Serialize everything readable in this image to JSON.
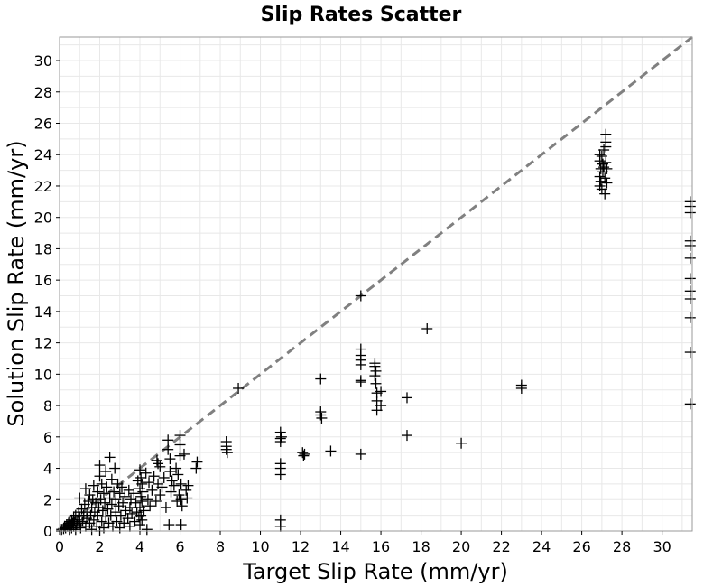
{
  "chart_data": {
    "type": "scatter",
    "title": "Slip Rates Scatter",
    "xlabel": "Target Slip Rate (mm/yr)",
    "ylabel": "Solution Slip Rate (mm/yr)",
    "xlim": [
      0,
      31.5
    ],
    "ylim": [
      0,
      31.5
    ],
    "xticks": [
      "0",
      "2",
      "4",
      "6",
      "8",
      "10",
      "12",
      "14",
      "16",
      "18",
      "20",
      "22",
      "24",
      "26",
      "28",
      "30"
    ],
    "yticks": [
      "0",
      "2",
      "4",
      "6",
      "8",
      "10",
      "12",
      "14",
      "16",
      "18",
      "20",
      "22",
      "24",
      "26",
      "28",
      "30"
    ],
    "grid": true,
    "marker": "plus",
    "marker_color": "#000000",
    "reference_line": {
      "from": [
        0,
        0
      ],
      "to": [
        31.5,
        31.5
      ],
      "style": "dashed",
      "color": "#808080"
    },
    "points": [
      [
        0.1,
        0.1
      ],
      [
        0.2,
        0.15
      ],
      [
        0.25,
        0.3
      ],
      [
        0.3,
        0.2
      ],
      [
        0.35,
        0.4
      ],
      [
        0.4,
        0.3
      ],
      [
        0.45,
        0.5
      ],
      [
        0.5,
        0.1
      ],
      [
        0.5,
        0.6
      ],
      [
        0.55,
        0.35
      ],
      [
        0.6,
        0.7
      ],
      [
        0.6,
        0.2
      ],
      [
        0.65,
        0.5
      ],
      [
        0.7,
        0.9
      ],
      [
        0.7,
        0.3
      ],
      [
        0.75,
        0.6
      ],
      [
        0.8,
        0.1
      ],
      [
        0.8,
        1.0
      ],
      [
        0.85,
        0.4
      ],
      [
        0.9,
        0.7
      ],
      [
        0.95,
        1.2
      ],
      [
        1.0,
        0.5
      ],
      [
        1.0,
        0.9
      ],
      [
        1.0,
        2.1
      ],
      [
        1.05,
        0.2
      ],
      [
        1.1,
        1.4
      ],
      [
        1.15,
        0.6
      ],
      [
        1.2,
        1.0
      ],
      [
        1.25,
        1.7
      ],
      [
        1.3,
        0.3
      ],
      [
        1.3,
        2.7
      ],
      [
        1.35,
        0.8
      ],
      [
        1.4,
        1.2
      ],
      [
        1.45,
        1.9
      ],
      [
        1.5,
        0.5
      ],
      [
        1.5,
        2.3
      ],
      [
        1.55,
        1.0
      ],
      [
        1.6,
        1.5
      ],
      [
        1.6,
        0.1
      ],
      [
        1.65,
        2.0
      ],
      [
        1.7,
        2.9
      ],
      [
        1.7,
        0.7
      ],
      [
        1.75,
        1.2
      ],
      [
        1.8,
        1.8
      ],
      [
        1.85,
        0.3
      ],
      [
        1.9,
        2.5
      ],
      [
        1.9,
        1.0
      ],
      [
        1.95,
        1.5
      ],
      [
        2.0,
        0.0
      ],
      [
        2.0,
        3.5
      ],
      [
        2.0,
        4.2
      ],
      [
        2.05,
        2.0
      ],
      [
        2.1,
        0.6
      ],
      [
        2.1,
        3.0
      ],
      [
        2.15,
        1.3
      ],
      [
        2.2,
        2.4
      ],
      [
        2.2,
        0.2
      ],
      [
        2.25,
        1.8
      ],
      [
        2.3,
        3.8
      ],
      [
        2.3,
        0.9
      ],
      [
        2.35,
        2.8
      ],
      [
        2.4,
        1.4
      ],
      [
        2.45,
        0.5
      ],
      [
        2.5,
        2.1
      ],
      [
        2.5,
        4.7
      ],
      [
        2.55,
        1.0
      ],
      [
        2.6,
        3.3
      ],
      [
        2.6,
        1.7
      ],
      [
        2.65,
        0.3
      ],
      [
        2.7,
        2.5
      ],
      [
        2.75,
        4.0
      ],
      [
        2.8,
        1.2
      ],
      [
        2.8,
        2.0
      ],
      [
        2.85,
        0.6
      ],
      [
        2.9,
        3.0
      ],
      [
        2.95,
        1.6
      ],
      [
        3.0,
        2.4
      ],
      [
        3.0,
        0.2
      ],
      [
        3.05,
        1.0
      ],
      [
        3.1,
        2.8
      ],
      [
        3.15,
        1.8
      ],
      [
        3.2,
        0.5
      ],
      [
        3.25,
        2.2
      ],
      [
        3.3,
        1.3
      ],
      [
        3.4,
        0.8
      ],
      [
        3.45,
        2.6
      ],
      [
        3.5,
        1.5
      ],
      [
        3.5,
        0.3
      ],
      [
        3.55,
        2.0
      ],
      [
        3.6,
        1.1
      ],
      [
        3.7,
        2.4
      ],
      [
        3.75,
        0.6
      ],
      [
        3.8,
        1.8
      ],
      [
        3.85,
        1.2
      ],
      [
        3.9,
        3.2
      ],
      [
        3.95,
        0.9
      ],
      [
        4.0,
        3.9
      ],
      [
        4.0,
        2.7
      ],
      [
        4.0,
        1.5
      ],
      [
        4.0,
        0.4
      ],
      [
        4.05,
        3.4
      ],
      [
        4.05,
        2.2
      ],
      [
        4.05,
        1.0
      ],
      [
        4.1,
        3.0
      ],
      [
        4.1,
        1.9
      ],
      [
        4.1,
        0.7
      ],
      [
        4.15,
        2.5
      ],
      [
        4.2,
        1.3
      ],
      [
        4.3,
        3.7
      ],
      [
        4.35,
        0.1
      ],
      [
        4.4,
        2.0
      ],
      [
        4.45,
        3.1
      ],
      [
        4.5,
        1.6
      ],
      [
        4.6,
        2.6
      ],
      [
        4.7,
        3.5
      ],
      [
        4.8,
        1.9
      ],
      [
        4.85,
        4.5
      ],
      [
        4.9,
        4.3
      ],
      [
        4.9,
        3.0
      ],
      [
        5.0,
        4.1
      ],
      [
        5.0,
        2.3
      ],
      [
        5.1,
        2.8
      ],
      [
        5.2,
        3.4
      ],
      [
        5.3,
        1.5
      ],
      [
        5.4,
        5.8
      ],
      [
        5.4,
        5.2
      ],
      [
        5.45,
        0.4
      ],
      [
        5.5,
        4.6
      ],
      [
        5.5,
        3.8
      ],
      [
        5.55,
        2.5
      ],
      [
        5.6,
        3.2
      ],
      [
        5.7,
        2.9
      ],
      [
        5.8,
        4.0
      ],
      [
        5.85,
        1.9
      ],
      [
        5.9,
        3.6
      ],
      [
        5.95,
        2.3
      ],
      [
        6.0,
        6.1
      ],
      [
        6.0,
        5.5
      ],
      [
        6.0,
        4.8
      ],
      [
        6.05,
        3.0
      ],
      [
        6.05,
        2.0
      ],
      [
        6.05,
        0.4
      ],
      [
        6.1,
        1.6
      ],
      [
        6.2,
        4.9
      ],
      [
        6.3,
        2.6
      ],
      [
        6.35,
        2.1
      ],
      [
        6.4,
        2.9
      ],
      [
        6.8,
        4.0
      ],
      [
        6.85,
        4.4
      ],
      [
        8.3,
        5.7
      ],
      [
        8.3,
        5.4
      ],
      [
        8.3,
        5.2
      ],
      [
        8.35,
        5.0
      ],
      [
        8.9,
        9.1
      ],
      [
        11.0,
        6.3
      ],
      [
        11.0,
        5.9
      ],
      [
        11.0,
        5.7
      ],
      [
        11.0,
        4.3
      ],
      [
        11.0,
        4.0
      ],
      [
        11.0,
        3.6
      ],
      [
        11.0,
        0.7
      ],
      [
        11.0,
        0.3
      ],
      [
        11.05,
        6.0
      ],
      [
        12.1,
        5.0
      ],
      [
        12.15,
        4.8
      ],
      [
        12.2,
        4.9
      ],
      [
        13.0,
        9.7
      ],
      [
        13.0,
        7.6
      ],
      [
        13.0,
        7.4
      ],
      [
        13.05,
        7.2
      ],
      [
        13.5,
        5.1
      ],
      [
        15.0,
        15.0
      ],
      [
        15.0,
        11.6
      ],
      [
        15.0,
        11.2
      ],
      [
        15.0,
        10.9
      ],
      [
        15.0,
        10.6
      ],
      [
        15.0,
        9.6
      ],
      [
        15.0,
        9.5
      ],
      [
        15.0,
        4.9
      ],
      [
        15.7,
        10.7
      ],
      [
        15.7,
        10.5
      ],
      [
        15.75,
        10.2
      ],
      [
        15.7,
        9.9
      ],
      [
        15.75,
        9.4
      ],
      [
        15.8,
        8.8
      ],
      [
        15.8,
        8.3
      ],
      [
        15.8,
        7.7
      ],
      [
        16.0,
        8.0
      ],
      [
        16.0,
        8.9
      ],
      [
        17.3,
        8.5
      ],
      [
        17.3,
        6.1
      ],
      [
        18.3,
        12.9
      ],
      [
        20.0,
        5.6
      ],
      [
        23.0,
        9.3
      ],
      [
        23.0,
        9.1
      ],
      [
        26.9,
        24.0
      ],
      [
        26.9,
        23.6
      ],
      [
        26.95,
        23.1
      ],
      [
        26.9,
        22.6
      ],
      [
        26.95,
        22.3
      ],
      [
        26.9,
        22.0
      ],
      [
        27.0,
        21.8
      ],
      [
        27.0,
        23.9
      ],
      [
        27.05,
        23.4
      ],
      [
        27.05,
        22.9
      ],
      [
        27.1,
        24.3
      ],
      [
        27.1,
        23.2
      ],
      [
        27.15,
        21.5
      ],
      [
        27.15,
        22.5
      ],
      [
        27.2,
        25.3
      ],
      [
        27.2,
        24.8
      ],
      [
        27.2,
        24.5
      ],
      [
        27.2,
        23.5
      ],
      [
        27.25,
        23.1
      ],
      [
        27.25,
        22.2
      ],
      [
        31.4,
        21.0
      ],
      [
        31.4,
        20.7
      ],
      [
        31.4,
        20.3
      ],
      [
        31.4,
        18.5
      ],
      [
        31.4,
        18.2
      ],
      [
        31.4,
        17.4
      ],
      [
        31.4,
        16.1
      ],
      [
        31.4,
        15.3
      ],
      [
        31.4,
        14.8
      ],
      [
        31.4,
        13.6
      ],
      [
        31.4,
        11.4
      ],
      [
        31.4,
        8.1
      ]
    ]
  }
}
